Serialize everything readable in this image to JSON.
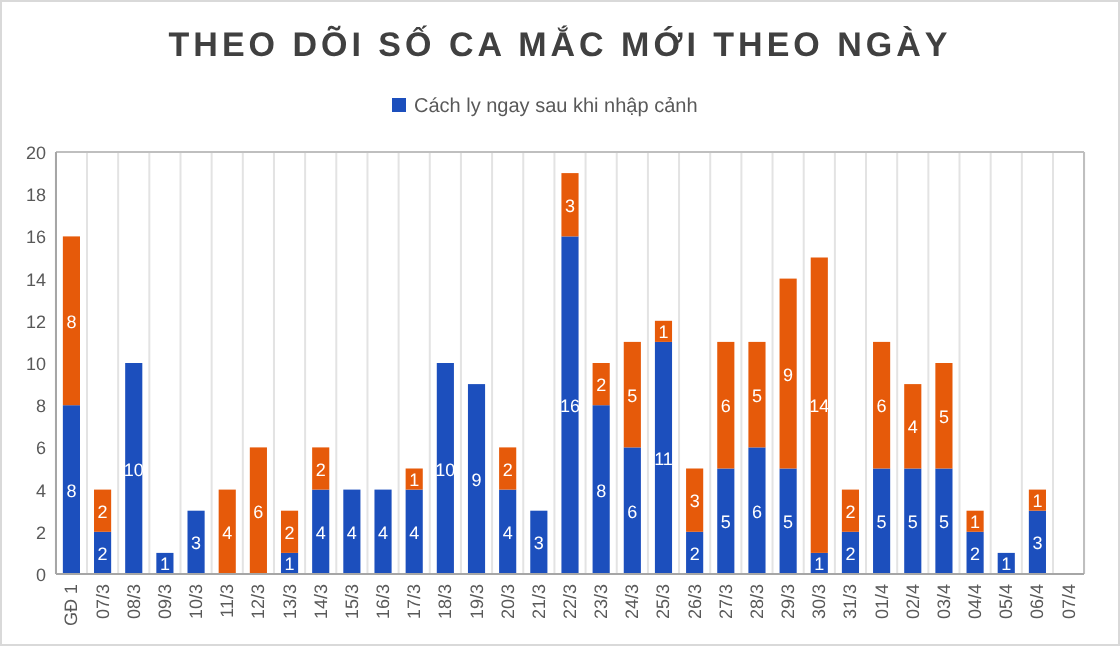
{
  "chart_data": {
    "type": "bar",
    "title": "THEO DÕI SỐ CA MẮC MỚI THEO NGÀY",
    "stacked": true,
    "data_labels": true,
    "legend": "top",
    "grid": "x",
    "categories": [
      "GĐ 1",
      "07/3",
      "08/3",
      "09/3",
      "10/3",
      "11/3",
      "12/3",
      "13/3",
      "14/3",
      "15/3",
      "16/3",
      "17/3",
      "18/3",
      "19/3",
      "20/3",
      "21/3",
      "22/3",
      "23/3",
      "24/3",
      "25/3",
      "26/3",
      "27/3",
      "28/3",
      "29/3",
      "30/3",
      "31/3",
      "01/4",
      "02/4",
      "03/4",
      "04/4",
      "05/4",
      "06/4",
      "07/4"
    ],
    "ylim": [
      0,
      20
    ],
    "yticks": [
      0,
      2,
      4,
      6,
      8,
      10,
      12,
      14,
      16,
      18,
      20
    ],
    "series": [
      {
        "name": "Cách ly ngay sau khi nhập cảnh",
        "color": "#1c4fbd",
        "values": [
          8,
          2,
          10,
          1,
          3,
          null,
          null,
          1,
          4,
          4,
          4,
          4,
          10,
          9,
          4,
          3,
          16,
          8,
          6,
          11,
          2,
          5,
          6,
          5,
          1,
          2,
          5,
          5,
          5,
          2,
          1,
          3,
          null
        ]
      },
      {
        "color": "#e65a0a",
        "values": [
          8,
          2,
          null,
          null,
          null,
          4,
          6,
          2,
          2,
          null,
          null,
          1,
          null,
          null,
          2,
          null,
          3,
          2,
          5,
          1,
          3,
          6,
          5,
          9,
          14,
          2,
          6,
          4,
          5,
          1,
          null,
          1,
          null
        ]
      }
    ]
  }
}
